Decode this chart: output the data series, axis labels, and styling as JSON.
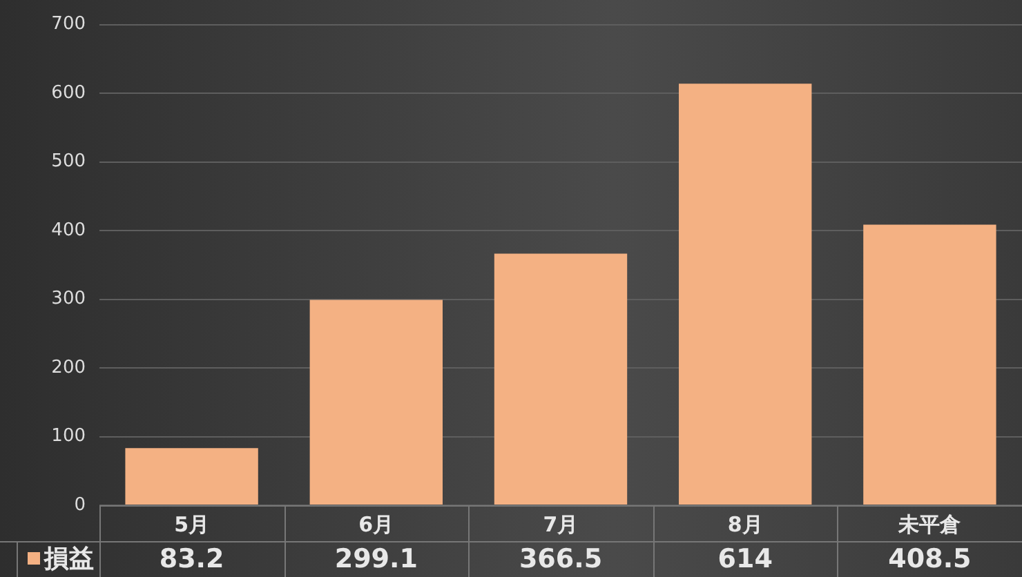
{
  "chart_data": {
    "type": "bar",
    "categories": [
      "5月",
      "6月",
      "7月",
      "8月",
      "未平倉"
    ],
    "series": [
      {
        "name": "損益",
        "color": "#f4b183",
        "values": [
          83.2,
          299.1,
          366.5,
          614,
          408.5
        ]
      }
    ],
    "ylim": [
      0,
      700
    ],
    "yticks": [
      0,
      100,
      200,
      300,
      400,
      500,
      600,
      700
    ],
    "grid": "y",
    "legend": "bottom left",
    "data_labels": true
  }
}
